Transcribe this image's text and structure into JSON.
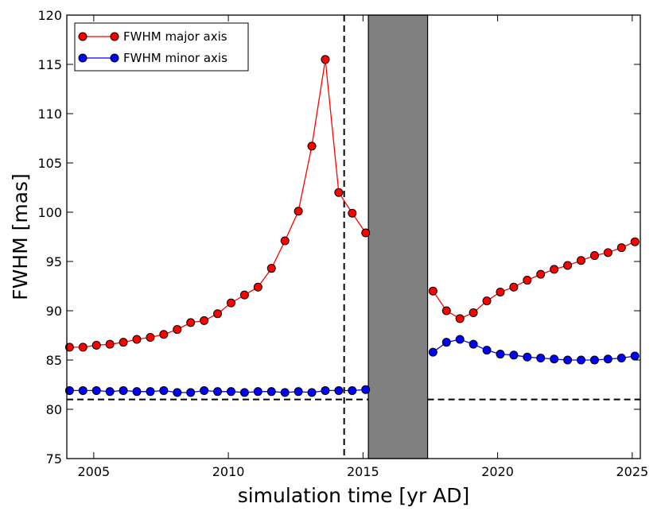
{
  "chart_data": {
    "type": "line",
    "title": "",
    "xlabel": "simulation time [yr AD]",
    "ylabel": "FWHM [mas]",
    "xlim": [
      2004,
      2025.3
    ],
    "ylim": [
      75,
      120
    ],
    "xticks": [
      2005,
      2010,
      2015,
      2020,
      2025
    ],
    "yticks": [
      75,
      80,
      85,
      90,
      95,
      100,
      105,
      110,
      115,
      120
    ],
    "grid": false,
    "legend_position": "top-left",
    "shaded_region": {
      "x_start": 2015.2,
      "x_end": 2017.4,
      "color": "#808080"
    },
    "vertical_line": {
      "x": 2014.3,
      "style": "dashed",
      "color": "#000000"
    },
    "horizontal_reference": [
      {
        "x_start": 2004,
        "x_end": 2015.2,
        "y": 81,
        "style": "dashed"
      },
      {
        "x_start": 2017.4,
        "x_end": 2025.3,
        "y": 81,
        "style": "dashed"
      }
    ],
    "series": [
      {
        "name": "FWHM major axis",
        "color": "#ff0000",
        "segments": [
          {
            "x": [
              2004.1,
              2004.6,
              2005.1,
              2005.6,
              2006.1,
              2006.6,
              2007.1,
              2007.6,
              2008.1,
              2008.6,
              2009.1,
              2009.6,
              2010.1,
              2010.6,
              2011.1,
              2011.6,
              2012.1,
              2012.6,
              2013.1,
              2013.6,
              2014.1,
              2014.6,
              2015.1
            ],
            "y": [
              86.3,
              86.3,
              86.5,
              86.6,
              86.8,
              87.1,
              87.3,
              87.6,
              88.1,
              88.8,
              89.0,
              89.7,
              90.8,
              91.6,
              92.4,
              94.3,
              97.1,
              100.1,
              106.7,
              115.5,
              102.0,
              99.9,
              97.9
            ]
          },
          {
            "x": [
              2017.6,
              2018.1,
              2018.6,
              2019.1,
              2019.6,
              2020.1,
              2020.6,
              2021.1,
              2021.6,
              2022.1,
              2022.6,
              2023.1,
              2023.6,
              2024.1,
              2024.6,
              2025.1
            ],
            "y": [
              92.0,
              90.0,
              89.2,
              89.8,
              91.0,
              91.9,
              92.4,
              93.1,
              93.7,
              94.2,
              94.6,
              95.1,
              95.6,
              95.9,
              96.4,
              97.0
            ]
          }
        ]
      },
      {
        "name": "FWHM minor axis",
        "color": "#0000ff",
        "segments": [
          {
            "x": [
              2004.1,
              2004.6,
              2005.1,
              2005.6,
              2006.1,
              2006.6,
              2007.1,
              2007.6,
              2008.1,
              2008.6,
              2009.1,
              2009.6,
              2010.1,
              2010.6,
              2011.1,
              2011.6,
              2012.1,
              2012.6,
              2013.1,
              2013.6,
              2014.1,
              2014.6,
              2015.1
            ],
            "y": [
              81.9,
              81.9,
              81.9,
              81.8,
              81.9,
              81.8,
              81.8,
              81.9,
              81.7,
              81.7,
              81.9,
              81.8,
              81.8,
              81.7,
              81.8,
              81.8,
              81.7,
              81.8,
              81.7,
              81.9,
              81.9,
              81.9,
              82.0
            ]
          },
          {
            "x": [
              2017.6,
              2018.1,
              2018.6,
              2019.1,
              2019.6,
              2020.1,
              2020.6,
              2021.1,
              2021.6,
              2022.1,
              2022.6,
              2023.1,
              2023.6,
              2024.1,
              2024.6,
              2025.1
            ],
            "y": [
              85.8,
              86.8,
              87.1,
              86.6,
              86.0,
              85.6,
              85.5,
              85.3,
              85.2,
              85.1,
              85.0,
              85.0,
              85.0,
              85.1,
              85.2,
              85.4
            ]
          }
        ]
      }
    ]
  }
}
